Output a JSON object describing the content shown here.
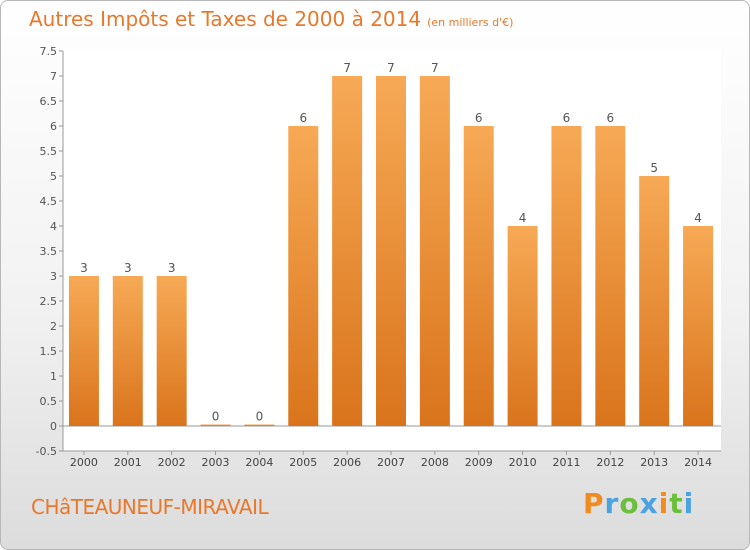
{
  "title": {
    "main": "Autres Impôts et Taxes de 2000 à 2014",
    "unit": "(en milliers d'€)"
  },
  "city": "CHâTEAUNEUF-MIRAVAIL",
  "brand": "Proxiti",
  "colors": {
    "bar_top": "#f7a955",
    "bar_bottom": "#d9741c",
    "title": "#e8782b"
  },
  "chart_data": {
    "type": "bar",
    "categories": [
      "2000",
      "2001",
      "2002",
      "2003",
      "2004",
      "2005",
      "2006",
      "2007",
      "2008",
      "2009",
      "2010",
      "2011",
      "2012",
      "2013",
      "2014"
    ],
    "values": [
      3,
      3,
      3,
      0,
      0,
      6,
      7,
      7,
      7,
      6,
      4,
      6,
      6,
      5,
      4
    ],
    "data_labels": [
      "3",
      "3",
      "3",
      "0",
      "0",
      "6",
      "7",
      "7",
      "7",
      "6",
      "4",
      "6",
      "6",
      "5",
      "4"
    ],
    "yticks": [
      "-0.5",
      "0",
      "0.5",
      "1",
      "1.5",
      "2",
      "2.5",
      "3",
      "3.5",
      "4",
      "4.5",
      "5",
      "5.5",
      "6",
      "6.5",
      "7",
      "7.5"
    ],
    "ylim": [
      -0.5,
      7.5
    ],
    "grid": false
  }
}
